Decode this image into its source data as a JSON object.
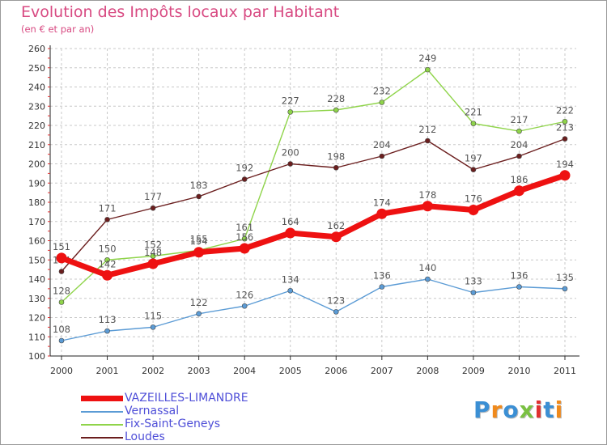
{
  "header": {
    "title": "Evolution des Impôts locaux par Habitant",
    "subtitle": "(en € et par an)"
  },
  "logo": {
    "text": "Proxiti",
    "colors": [
      "#3b8fd4",
      "#f08a1c",
      "#3b8fd4",
      "#7ac142",
      "#e03030",
      "#3b8fd4",
      "#f08a1c"
    ]
  },
  "chart_data": {
    "type": "line",
    "title": "Evolution des Impôts locaux par Habitant",
    "subtitle": "(en € et par an)",
    "x": [
      "2000",
      "2001",
      "2002",
      "2003",
      "2004",
      "2005",
      "2006",
      "2007",
      "2008",
      "2009",
      "2010",
      "2011"
    ],
    "ylim": [
      100,
      260
    ],
    "yticks": [
      100,
      110,
      120,
      130,
      140,
      150,
      160,
      170,
      180,
      190,
      200,
      210,
      220,
      230,
      240,
      250,
      260
    ],
    "grid": true,
    "legend_position": "bottom-left",
    "series": [
      {
        "name": "VAZEILLES-LIMANDRE",
        "color": "#ee1111",
        "values": [
          151,
          142,
          148,
          154,
          156,
          164,
          162,
          174,
          178,
          176,
          186,
          194
        ]
      },
      {
        "name": "Vernassal",
        "color": "#5b9bd5",
        "values": [
          108,
          113,
          115,
          122,
          126,
          134,
          123,
          136,
          140,
          133,
          136,
          135
        ]
      },
      {
        "name": "Fix-Saint-Geneys",
        "color": "#8fd44a",
        "values": [
          128,
          150,
          152,
          155,
          161,
          227,
          228,
          232,
          249,
          221,
          217,
          222
        ]
      },
      {
        "name": "Loudes",
        "color": "#6b1e1e",
        "values": [
          144,
          171,
          177,
          183,
          192,
          200,
          198,
          204,
          212,
          197,
          204,
          213
        ]
      }
    ]
  }
}
